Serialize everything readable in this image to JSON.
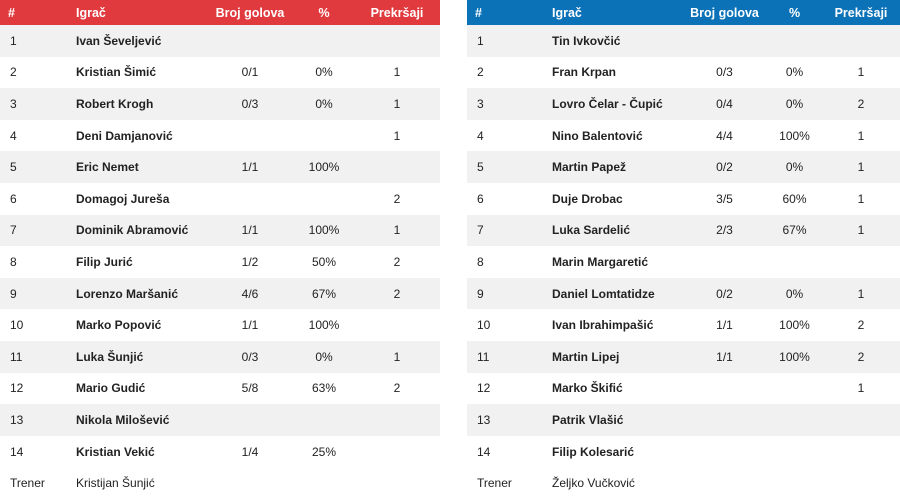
{
  "headers": {
    "num": "#",
    "player": "Igrač",
    "goals": "Broj golova",
    "pct": "%",
    "fouls": "Prekršaji"
  },
  "colors": {
    "home_header": "#e03a3e",
    "away_header": "#0b72b8"
  },
  "home": {
    "rows": [
      {
        "num": "1",
        "name": "Ivan Ševeljević",
        "goals": "",
        "pct": "",
        "fouls": ""
      },
      {
        "num": "2",
        "name": "Kristian Šimić",
        "goals": "0/1",
        "pct": "0%",
        "fouls": "1"
      },
      {
        "num": "3",
        "name": "Robert Krogh",
        "goals": "0/3",
        "pct": "0%",
        "fouls": "1"
      },
      {
        "num": "4",
        "name": "Deni Damjanović",
        "goals": "",
        "pct": "",
        "fouls": "1"
      },
      {
        "num": "5",
        "name": "Eric Nemet",
        "goals": "1/1",
        "pct": "100%",
        "fouls": ""
      },
      {
        "num": "6",
        "name": "Domagoj Jureša",
        "goals": "",
        "pct": "",
        "fouls": "2"
      },
      {
        "num": "7",
        "name": "Dominik Abramović",
        "goals": "1/1",
        "pct": "100%",
        "fouls": "1"
      },
      {
        "num": "8",
        "name": "Filip Jurić",
        "goals": "1/2",
        "pct": "50%",
        "fouls": "2"
      },
      {
        "num": "9",
        "name": "Lorenzo Maršanić",
        "goals": "4/6",
        "pct": "67%",
        "fouls": "2"
      },
      {
        "num": "10",
        "name": "Marko Popović",
        "goals": "1/1",
        "pct": "100%",
        "fouls": ""
      },
      {
        "num": "11",
        "name": "Luka Šunjić",
        "goals": "0/3",
        "pct": "0%",
        "fouls": "1"
      },
      {
        "num": "12",
        "name": "Mario Gudić",
        "goals": "5/8",
        "pct": "63%",
        "fouls": "2"
      },
      {
        "num": "13",
        "name": "Nikola Milošević",
        "goals": "",
        "pct": "",
        "fouls": ""
      },
      {
        "num": "14",
        "name": "Kristian Vekić",
        "goals": "1/4",
        "pct": "25%",
        "fouls": ""
      }
    ],
    "coach": {
      "label": "Trener",
      "name": "Kristijan Šunjić"
    }
  },
  "away": {
    "rows": [
      {
        "num": "1",
        "name": "Tin Ivkovčić",
        "goals": "",
        "pct": "",
        "fouls": ""
      },
      {
        "num": "2",
        "name": "Fran Krpan",
        "goals": "0/3",
        "pct": "0%",
        "fouls": "1"
      },
      {
        "num": "3",
        "name": "Lovro Čelar - Čupić",
        "goals": "0/4",
        "pct": "0%",
        "fouls": "2"
      },
      {
        "num": "4",
        "name": "Nino Balentović",
        "goals": "4/4",
        "pct": "100%",
        "fouls": "1"
      },
      {
        "num": "5",
        "name": "Martin Papež",
        "goals": "0/2",
        "pct": "0%",
        "fouls": "1"
      },
      {
        "num": "6",
        "name": "Duje Drobac",
        "goals": "3/5",
        "pct": "60%",
        "fouls": "1"
      },
      {
        "num": "7",
        "name": "Luka Sardelić",
        "goals": "2/3",
        "pct": "67%",
        "fouls": "1"
      },
      {
        "num": "8",
        "name": "Marin Margaretić",
        "goals": "",
        "pct": "",
        "fouls": ""
      },
      {
        "num": "9",
        "name": "Daniel Lomtatidze",
        "goals": "0/2",
        "pct": "0%",
        "fouls": "1"
      },
      {
        "num": "10",
        "name": "Ivan Ibrahimpašić",
        "goals": "1/1",
        "pct": "100%",
        "fouls": "2"
      },
      {
        "num": "11",
        "name": "Martin Lipej",
        "goals": "1/1",
        "pct": "100%",
        "fouls": "2"
      },
      {
        "num": "12",
        "name": "Marko Škifić",
        "goals": "",
        "pct": "",
        "fouls": "1"
      },
      {
        "num": "13",
        "name": "Patrik Vlašić",
        "goals": "",
        "pct": "",
        "fouls": ""
      },
      {
        "num": "14",
        "name": "Filip Kolesarić",
        "goals": "",
        "pct": "",
        "fouls": ""
      }
    ],
    "coach": {
      "label": "Trener",
      "name": "Željko Vučković"
    }
  }
}
